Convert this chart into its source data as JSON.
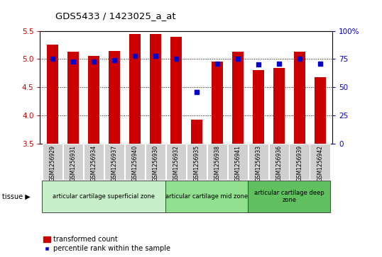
{
  "title": "GDS5433 / 1423025_a_at",
  "samples": [
    "GSM1256929",
    "GSM1256931",
    "GSM1256934",
    "GSM1256937",
    "GSM1256940",
    "GSM1256930",
    "GSM1256932",
    "GSM1256935",
    "GSM1256938",
    "GSM1256941",
    "GSM1256933",
    "GSM1256936",
    "GSM1256939",
    "GSM1256942"
  ],
  "bar_values": [
    5.26,
    5.13,
    5.05,
    5.15,
    5.45,
    5.45,
    5.4,
    3.93,
    4.95,
    5.13,
    4.8,
    4.84,
    5.13,
    4.68
  ],
  "dot_values": [
    75,
    73,
    73,
    74,
    78,
    78,
    75,
    46,
    71,
    75,
    70,
    71,
    75,
    71
  ],
  "ylim_left": [
    3.5,
    5.5
  ],
  "ylim_right": [
    0,
    100
  ],
  "bar_color": "#cc0000",
  "dot_color": "#0000cc",
  "tissue_groups": [
    {
      "label": "articular cartilage superficial zone",
      "start": 0,
      "end": 6,
      "color": "#c8f0c8"
    },
    {
      "label": "articular cartilage mid zone",
      "start": 6,
      "end": 10,
      "color": "#90e090"
    },
    {
      "label": "articular cartilage deep\nzone",
      "start": 10,
      "end": 14,
      "color": "#60c060"
    }
  ],
  "left_yticks": [
    3.5,
    4.0,
    4.5,
    5.0,
    5.5
  ],
  "right_yticks": [
    0,
    25,
    50,
    75,
    100
  ],
  "right_yticklabels": [
    "0",
    "25",
    "50",
    "75",
    "100%"
  ],
  "ylabel_left_color": "#cc0000",
  "ylabel_right_color": "#0000cc",
  "legend_bar_label": "transformed count",
  "legend_dot_label": "percentile rank within the sample",
  "sample_box_color": "#d0d0d0"
}
